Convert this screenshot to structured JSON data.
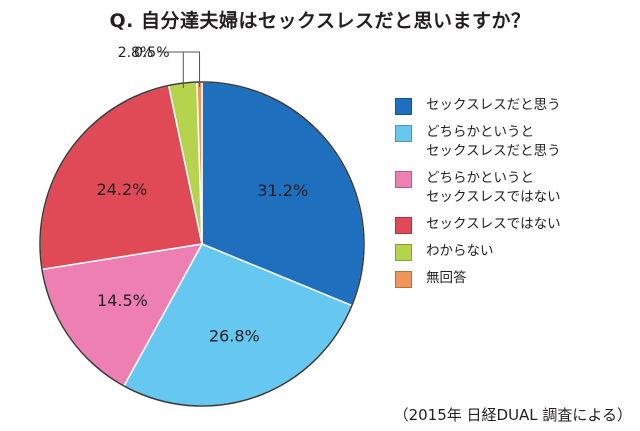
{
  "chart_data": {
    "type": "pie",
    "title": "Q. 自分達夫婦はセックスレスだと思いますか？",
    "source": "（2015年 日経DUAL 調査による）",
    "slices": [
      {
        "label": "セックスレスだと思う",
        "value": 31.2,
        "display": "31.2%",
        "color": "#1f6fbf"
      },
      {
        "label": "どちらかというと\nセックスレスだと思う",
        "value": 26.8,
        "display": "26.8%",
        "color": "#66c7f0"
      },
      {
        "label": "どちらかというと\nセックスレスではない",
        "value": 14.5,
        "display": "14.5%",
        "color": "#ee7fb2"
      },
      {
        "label": "セックスレスではない",
        "value": 24.2,
        "display": "24.2%",
        "color": "#e04a56"
      },
      {
        "label": "わからない",
        "value": 2.8,
        "display": "2.8%",
        "color": "#b5d34c"
      },
      {
        "label": "無回答",
        "value": 0.5,
        "display": "0.5%",
        "color": "#f0955a"
      }
    ],
    "start": "12 o'clock",
    "direction": "clockwise",
    "legend_position": "right"
  }
}
